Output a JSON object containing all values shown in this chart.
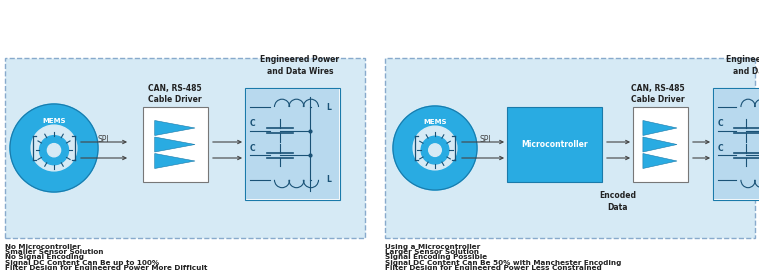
{
  "bg_light": "#d6eaf5",
  "box_bg_blue": "#29abe2",
  "white": "#ffffff",
  "arrow_color": "#444444",
  "text_dark": "#222222",
  "dashed_border": "#88aacc",
  "lc_line": "#1a5276",
  "left_bullets": [
    "No Microcontroller",
    "Smaller Sensor Solution",
    "No Signal Encoding",
    "Signal DC Content Can Be up to 100%",
    "Filter Design for Engineered Power More Difficult"
  ],
  "right_bullets": [
    "Using a Microcontroller",
    "Larger Sensor Solution",
    "Signal Encoding Possible",
    "Signal DC Content Can Be 50% with Manchester Encoding",
    "Filter Design for Engineered Power Less Constrained"
  ]
}
